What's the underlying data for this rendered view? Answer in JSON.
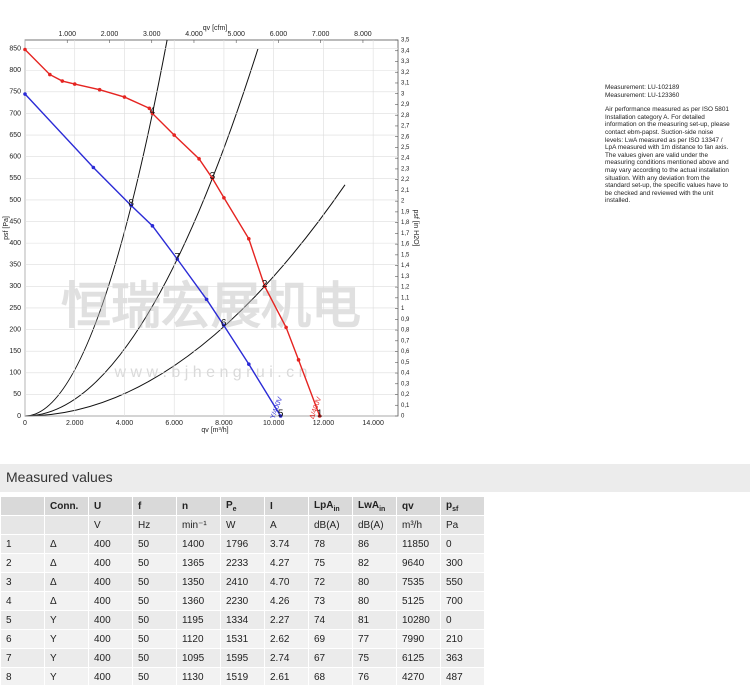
{
  "chart_data": {
    "type": "line",
    "x_label": "qv [m³/h]",
    "x2_label": "qv [cfm]",
    "y_label": "psf [Pa]",
    "y2_label": "psf [in H2O]",
    "xlim": [
      0,
      15000
    ],
    "x2lim": [
      0,
      8830
    ],
    "ylim": [
      0,
      870
    ],
    "y2lim": [
      0,
      3.5
    ],
    "grid": true,
    "xticks": [
      0,
      {
        "value": 2000,
        "label": "2.000"
      },
      {
        "value": 4000,
        "label": "4.000"
      },
      {
        "value": 6000,
        "label": "6.000"
      },
      {
        "value": 8000,
        "label": "8.000"
      },
      {
        "value": 10000,
        "label": "10.000"
      },
      {
        "value": 12000,
        "label": "12.000"
      },
      {
        "value": 14000,
        "label": "14.000"
      }
    ],
    "x2ticks": [
      {
        "value": 1000,
        "label": "1.000"
      },
      {
        "value": 2000,
        "label": "2.000"
      },
      {
        "value": 3000,
        "label": "3.000"
      },
      {
        "value": 4000,
        "label": "4.000"
      },
      {
        "value": 5000,
        "label": "5.000"
      },
      {
        "value": 6000,
        "label": "6.000"
      },
      {
        "value": 7000,
        "label": "7.000"
      },
      {
        "value": 8000,
        "label": "8.000"
      }
    ],
    "yticks": [
      0,
      50,
      100,
      150,
      200,
      250,
      300,
      350,
      400,
      450,
      500,
      550,
      600,
      650,
      700,
      750,
      800,
      850
    ],
    "y2ticks": [
      0,
      {
        "value": 0.1,
        "label": "0,1"
      },
      {
        "value": 0.2,
        "label": "0,2"
      },
      {
        "value": 0.3,
        "label": "0,3"
      },
      {
        "value": 0.4,
        "label": "0,4"
      },
      {
        "value": 0.5,
        "label": "0,5"
      },
      {
        "value": 0.6,
        "label": "0,6"
      },
      {
        "value": 0.7,
        "label": "0,7"
      },
      {
        "value": 0.8,
        "label": "0,8"
      },
      {
        "value": 0.9,
        "label": "0,9"
      },
      1,
      {
        "value": 1.1,
        "label": "1,1"
      },
      {
        "value": 1.2,
        "label": "1,2"
      },
      {
        "value": 1.3,
        "label": "1,3"
      },
      {
        "value": 1.4,
        "label": "1,4"
      },
      {
        "value": 1.5,
        "label": "1,5"
      },
      {
        "value": 1.6,
        "label": "1,6"
      },
      {
        "value": 1.7,
        "label": "1,7"
      },
      {
        "value": 1.8,
        "label": "1,8"
      },
      {
        "value": 1.9,
        "label": "1,9"
      },
      2,
      {
        "value": 2.1,
        "label": "2,1"
      },
      {
        "value": 2.2,
        "label": "2,2"
      },
      {
        "value": 2.3,
        "label": "2,3"
      },
      {
        "value": 2.4,
        "label": "2,4"
      },
      {
        "value": 2.5,
        "label": "2,5"
      },
      {
        "value": 2.6,
        "label": "2,6"
      },
      {
        "value": 2.7,
        "label": "2,7"
      },
      {
        "value": 2.8,
        "label": "2,8"
      },
      {
        "value": 2.9,
        "label": "2,9"
      },
      3,
      {
        "value": 3.1,
        "label": "3,1"
      },
      {
        "value": 3.2,
        "label": "3,2"
      },
      {
        "value": 3.3,
        "label": "3,3"
      },
      {
        "value": 3.4,
        "label": "3,4"
      },
      {
        "value": 3.5,
        "label": "3,5"
      }
    ],
    "series": [
      {
        "name": "Δ/400V",
        "color": "#e52421",
        "x": [
          0,
          1000,
          1500,
          2000,
          3000,
          4000,
          5000,
          5125,
          6000,
          7000,
          7535,
          8000,
          9000,
          9640,
          10500,
          11000,
          11850
        ],
        "values": [
          848,
          790,
          775,
          768,
          755,
          738,
          712,
          700,
          650,
          595,
          550,
          505,
          410,
          300,
          205,
          130,
          0
        ]
      },
      {
        "name": "Y/400V",
        "color": "#2b2bd6",
        "x": [
          0,
          2750,
          4270,
          5125,
          6125,
          7300,
          7990,
          9000,
          10280
        ],
        "values": [
          745,
          575,
          487,
          440,
          363,
          270,
          210,
          120,
          0
        ]
      }
    ],
    "operating_points": {
      "labels": [
        "1",
        "2",
        "3",
        "4",
        "5",
        "6",
        "7",
        "8"
      ],
      "x": [
        11850,
        9640,
        7535,
        5125,
        10280,
        7990,
        6125,
        4270
      ],
      "values": [
        0,
        300,
        550,
        700,
        0,
        210,
        363,
        487
      ]
    },
    "watermark": {
      "text": "恒瑞宏展机电",
      "url": "w w w . b j h e n g r u i . c n"
    }
  },
  "notes": [
    "Measurement: LU-102189",
    "Measurement: LU-123360"
  ],
  "description": [
    "Air performance measured as per ISO 5801",
    "Installation category A. For detailed",
    "information on the measuring set-up, please",
    "contact ebm-papst. Suction-side noise",
    "levels: LwA measured as per ISO 13347 /",
    "LpA measured with 1m distance to fan axis.",
    "The values given are valid under the",
    "measuring conditions mentioned above and",
    "may vary according to the actual installation",
    "situation. With any deviation from the",
    "standard set-up, the specific values have to",
    "be checked and reviewed with the unit",
    "installed."
  ],
  "table": {
    "title": "Measured values",
    "headers": [
      null,
      {
        "text": "Conn."
      },
      {
        "text": "U"
      },
      {
        "text": "f"
      },
      {
        "text": "n"
      },
      {
        "text": "P",
        "sub": "e"
      },
      {
        "text": "I"
      },
      {
        "text": "LpA",
        "sub": "in"
      },
      {
        "text": "LwA",
        "sub": "in"
      },
      {
        "text": "qv"
      },
      {
        "text": "p",
        "sub": "sf"
      }
    ],
    "units": [
      null,
      null,
      "V",
      "Hz",
      "min⁻¹",
      "W",
      "A",
      "dB(A)",
      "dB(A)",
      "m³/h",
      "Pa"
    ],
    "rows": [
      [
        "1",
        "Δ",
        "400",
        "50",
        "1400",
        "1796",
        "3.74",
        "78",
        "86",
        "11850",
        "0"
      ],
      [
        "2",
        "Δ",
        "400",
        "50",
        "1365",
        "2233",
        "4.27",
        "75",
        "82",
        "9640",
        "300"
      ],
      [
        "3",
        "Δ",
        "400",
        "50",
        "1350",
        "2410",
        "4.70",
        "72",
        "80",
        "7535",
        "550"
      ],
      [
        "4",
        "Δ",
        "400",
        "50",
        "1360",
        "2230",
        "4.26",
        "73",
        "80",
        "5125",
        "700"
      ],
      [
        "5",
        "Y",
        "400",
        "50",
        "1195",
        "1334",
        "2.27",
        "74",
        "81",
        "10280",
        "0"
      ],
      [
        "6",
        "Y",
        "400",
        "50",
        "1120",
        "1531",
        "2.62",
        "69",
        "77",
        "7990",
        "210"
      ],
      [
        "7",
        "Y",
        "400",
        "50",
        "1095",
        "1595",
        "2.74",
        "67",
        "75",
        "6125",
        "363"
      ],
      [
        "8",
        "Y",
        "400",
        "50",
        "1130",
        "1519",
        "2.61",
        "68",
        "76",
        "4270",
        "487"
      ]
    ]
  }
}
